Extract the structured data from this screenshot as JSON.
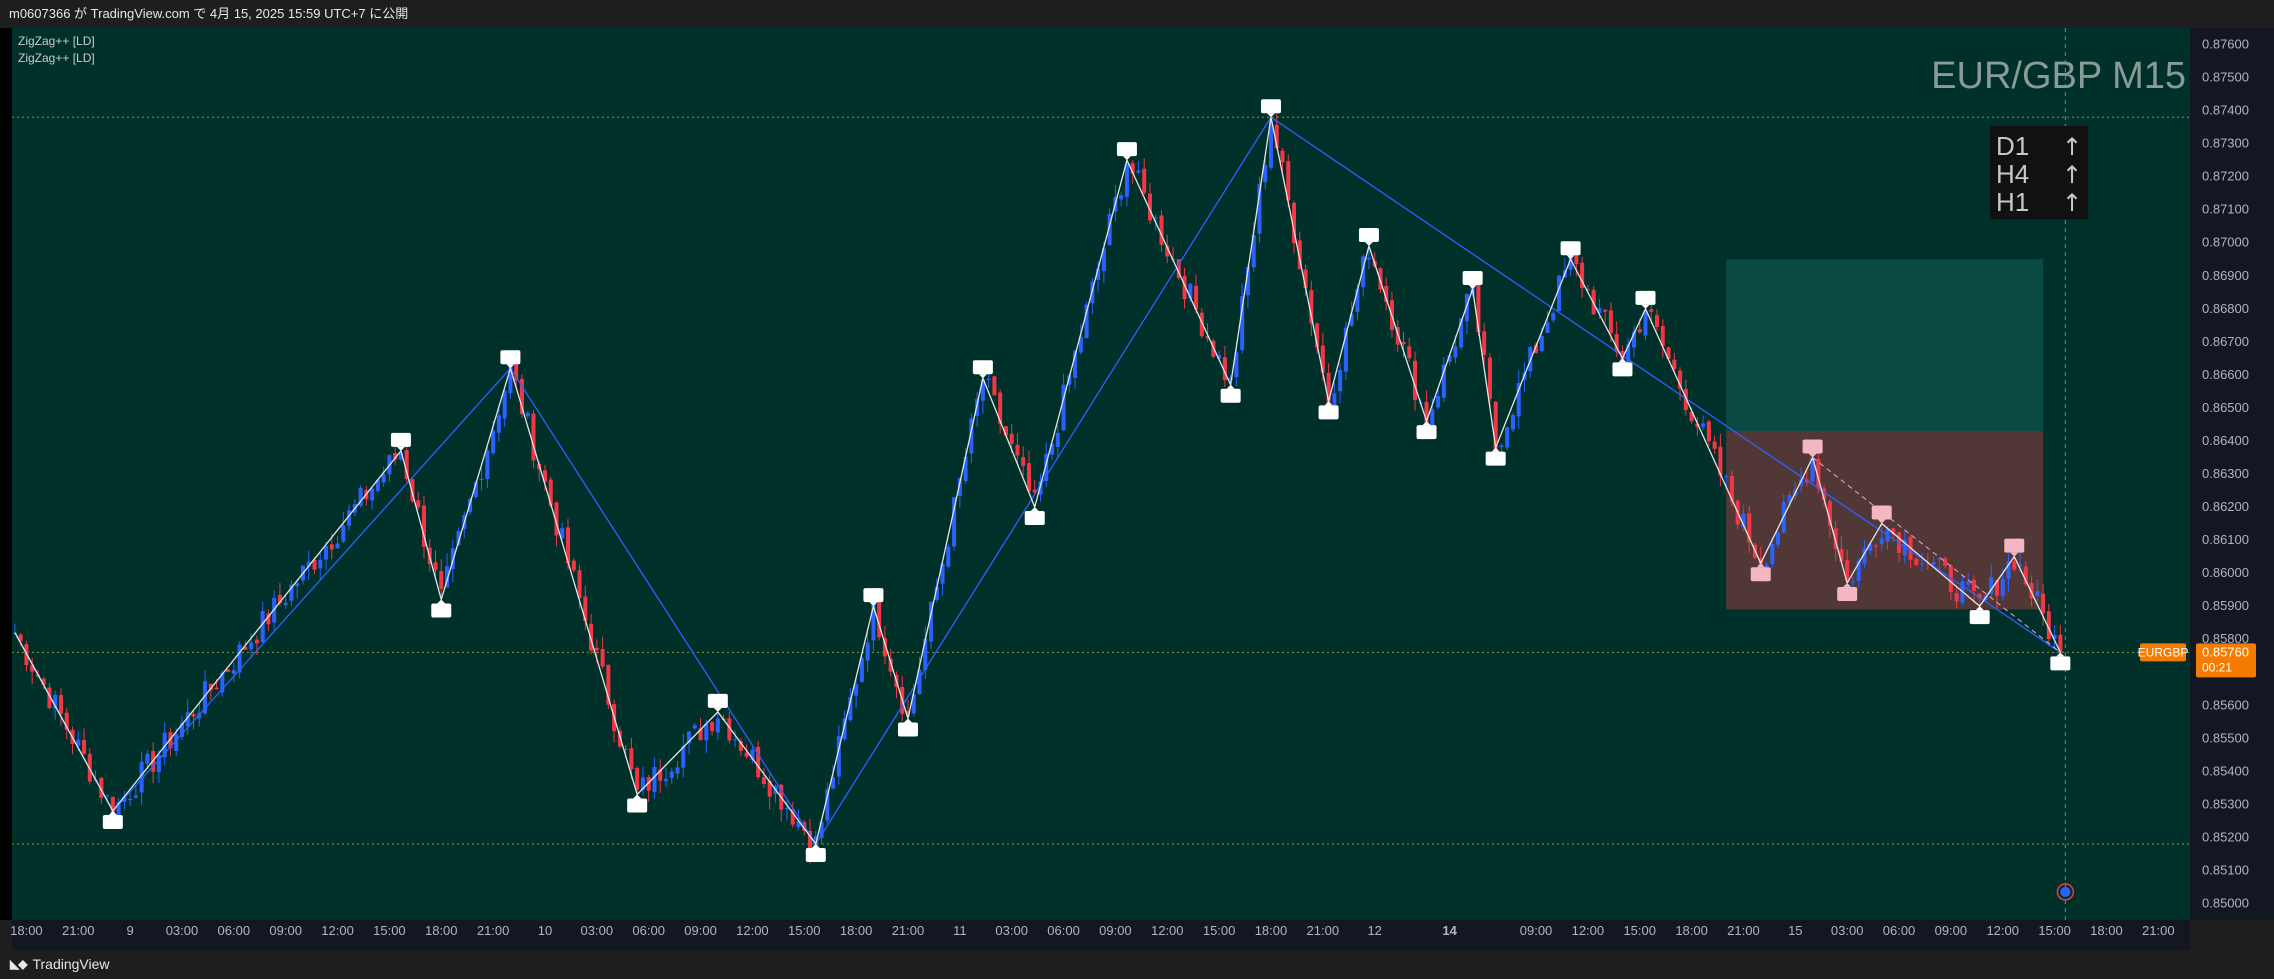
{
  "header": {
    "publish_text": "m0607366 が TradingView.com で 4月 15, 2025 15:59 UTC+7 に公開"
  },
  "footer": {
    "brand": "TradingView",
    "logo_icon": "tradingview-logo-icon"
  },
  "indicators": [
    "ZigZag++ [LD]",
    "ZigZag++ [LD]"
  ],
  "watermark": "EUR/GBP M15",
  "trend_panel": [
    {
      "tf": "D1",
      "arrow": "↑"
    },
    {
      "tf": "H4",
      "arrow": "↑"
    },
    {
      "tf": "H1",
      "arrow": "↑"
    }
  ],
  "price_tag": {
    "symbol": "EURGBP",
    "price": "0.85760",
    "countdown": "00:21"
  },
  "colors": {
    "background": "#00302a",
    "up_candle": "#2962ff",
    "down_candle": "#f23645",
    "zigzag_primary": "#e6e6e6",
    "zigzag_secondary": "#2962ff",
    "price_tag": "#f57c00",
    "target_zone": "#0b5047",
    "stop_zone": "#5a3a38"
  },
  "chart_data": {
    "type": "candlestick",
    "symbol": "EURGBP",
    "timeframe": "M15",
    "ylim": [
      0.8495,
      0.8765
    ],
    "y_ticks": [
      "0.87600",
      "0.87500",
      "0.87400",
      "0.87300",
      "0.87200",
      "0.87100",
      "0.87000",
      "0.86900",
      "0.86800",
      "0.86700",
      "0.86600",
      "0.86500",
      "0.86400",
      "0.86300",
      "0.86200",
      "0.86100",
      "0.86000",
      "0.85900",
      "0.85800",
      "0.85700",
      "0.85600",
      "0.85500",
      "0.85400",
      "0.85300",
      "0.85200",
      "0.85100",
      "0.85000"
    ],
    "x_ticks": [
      "18:00",
      "21:00",
      "9",
      "03:00",
      "06:00",
      "09:00",
      "12:00",
      "15:00",
      "18:00",
      "21:00",
      "10",
      "03:00",
      "06:00",
      "09:00",
      "12:00",
      "15:00",
      "18:00",
      "21:00",
      "11",
      "03:00",
      "06:00",
      "09:00",
      "12:00",
      "15:00",
      "18:00",
      "21:00",
      "12",
      "14",
      "09:00",
      "12:00",
      "15:00",
      "18:00",
      "21:00",
      "15",
      "03:00",
      "06:00",
      "09:00",
      "12:00",
      "15:00",
      "18:00",
      "21:00"
    ],
    "x_tick_index": [
      2,
      11,
      20,
      29,
      38,
      47,
      56,
      65,
      74,
      83,
      92,
      101,
      110,
      119,
      128,
      137,
      146,
      155,
      164,
      173,
      182,
      191,
      200,
      209,
      218,
      227,
      236,
      249,
      264,
      273,
      282,
      291,
      300,
      309,
      318,
      327,
      336,
      345,
      354,
      363,
      372
    ],
    "bars_total": 378,
    "last_bar_index": 355,
    "zigzag_pivots": [
      {
        "i": 0,
        "price": 0.8582
      },
      {
        "i": 17,
        "price": 0.8528
      },
      {
        "i": 67,
        "price": 0.8637
      },
      {
        "i": 74,
        "price": 0.8592
      },
      {
        "i": 86,
        "price": 0.8662
      },
      {
        "i": 108,
        "price": 0.8533
      },
      {
        "i": 122,
        "price": 0.8558
      },
      {
        "i": 139,
        "price": 0.8518
      },
      {
        "i": 149,
        "price": 0.859
      },
      {
        "i": 155,
        "price": 0.8556
      },
      {
        "i": 168,
        "price": 0.8659
      },
      {
        "i": 177,
        "price": 0.862
      },
      {
        "i": 193,
        "price": 0.8725
      },
      {
        "i": 211,
        "price": 0.8657
      },
      {
        "i": 218,
        "price": 0.8738
      },
      {
        "i": 228,
        "price": 0.8652
      },
      {
        "i": 235,
        "price": 0.8699
      },
      {
        "i": 245,
        "price": 0.8646
      },
      {
        "i": 253,
        "price": 0.8686
      },
      {
        "i": 257,
        "price": 0.8638
      },
      {
        "i": 270,
        "price": 0.8695
      },
      {
        "i": 279,
        "price": 0.8665
      },
      {
        "i": 283,
        "price": 0.868
      },
      {
        "i": 303,
        "price": 0.8603
      },
      {
        "i": 312,
        "price": 0.8635
      },
      {
        "i": 318,
        "price": 0.8597
      },
      {
        "i": 324,
        "price": 0.8615
      },
      {
        "i": 341,
        "price": 0.859
      },
      {
        "i": 347,
        "price": 0.8605
      },
      {
        "i": 355,
        "price": 0.8576
      }
    ],
    "secondary_zigzag": [
      {
        "i": 0,
        "price": 0.8582
      },
      {
        "i": 17,
        "price": 0.8528
      },
      {
        "i": 86,
        "price": 0.8662
      },
      {
        "i": 139,
        "price": 0.8518
      },
      {
        "i": 218,
        "price": 0.8738
      },
      {
        "i": 355,
        "price": 0.8576
      }
    ],
    "pink_markers": [
      303,
      312,
      318,
      324,
      347
    ],
    "levels": [
      0.8738,
      0.8576,
      0.8518
    ],
    "position": {
      "start_i": 297,
      "end_i": 352,
      "entry": 0.8643,
      "target": 0.8695,
      "stop": 0.8589
    }
  }
}
